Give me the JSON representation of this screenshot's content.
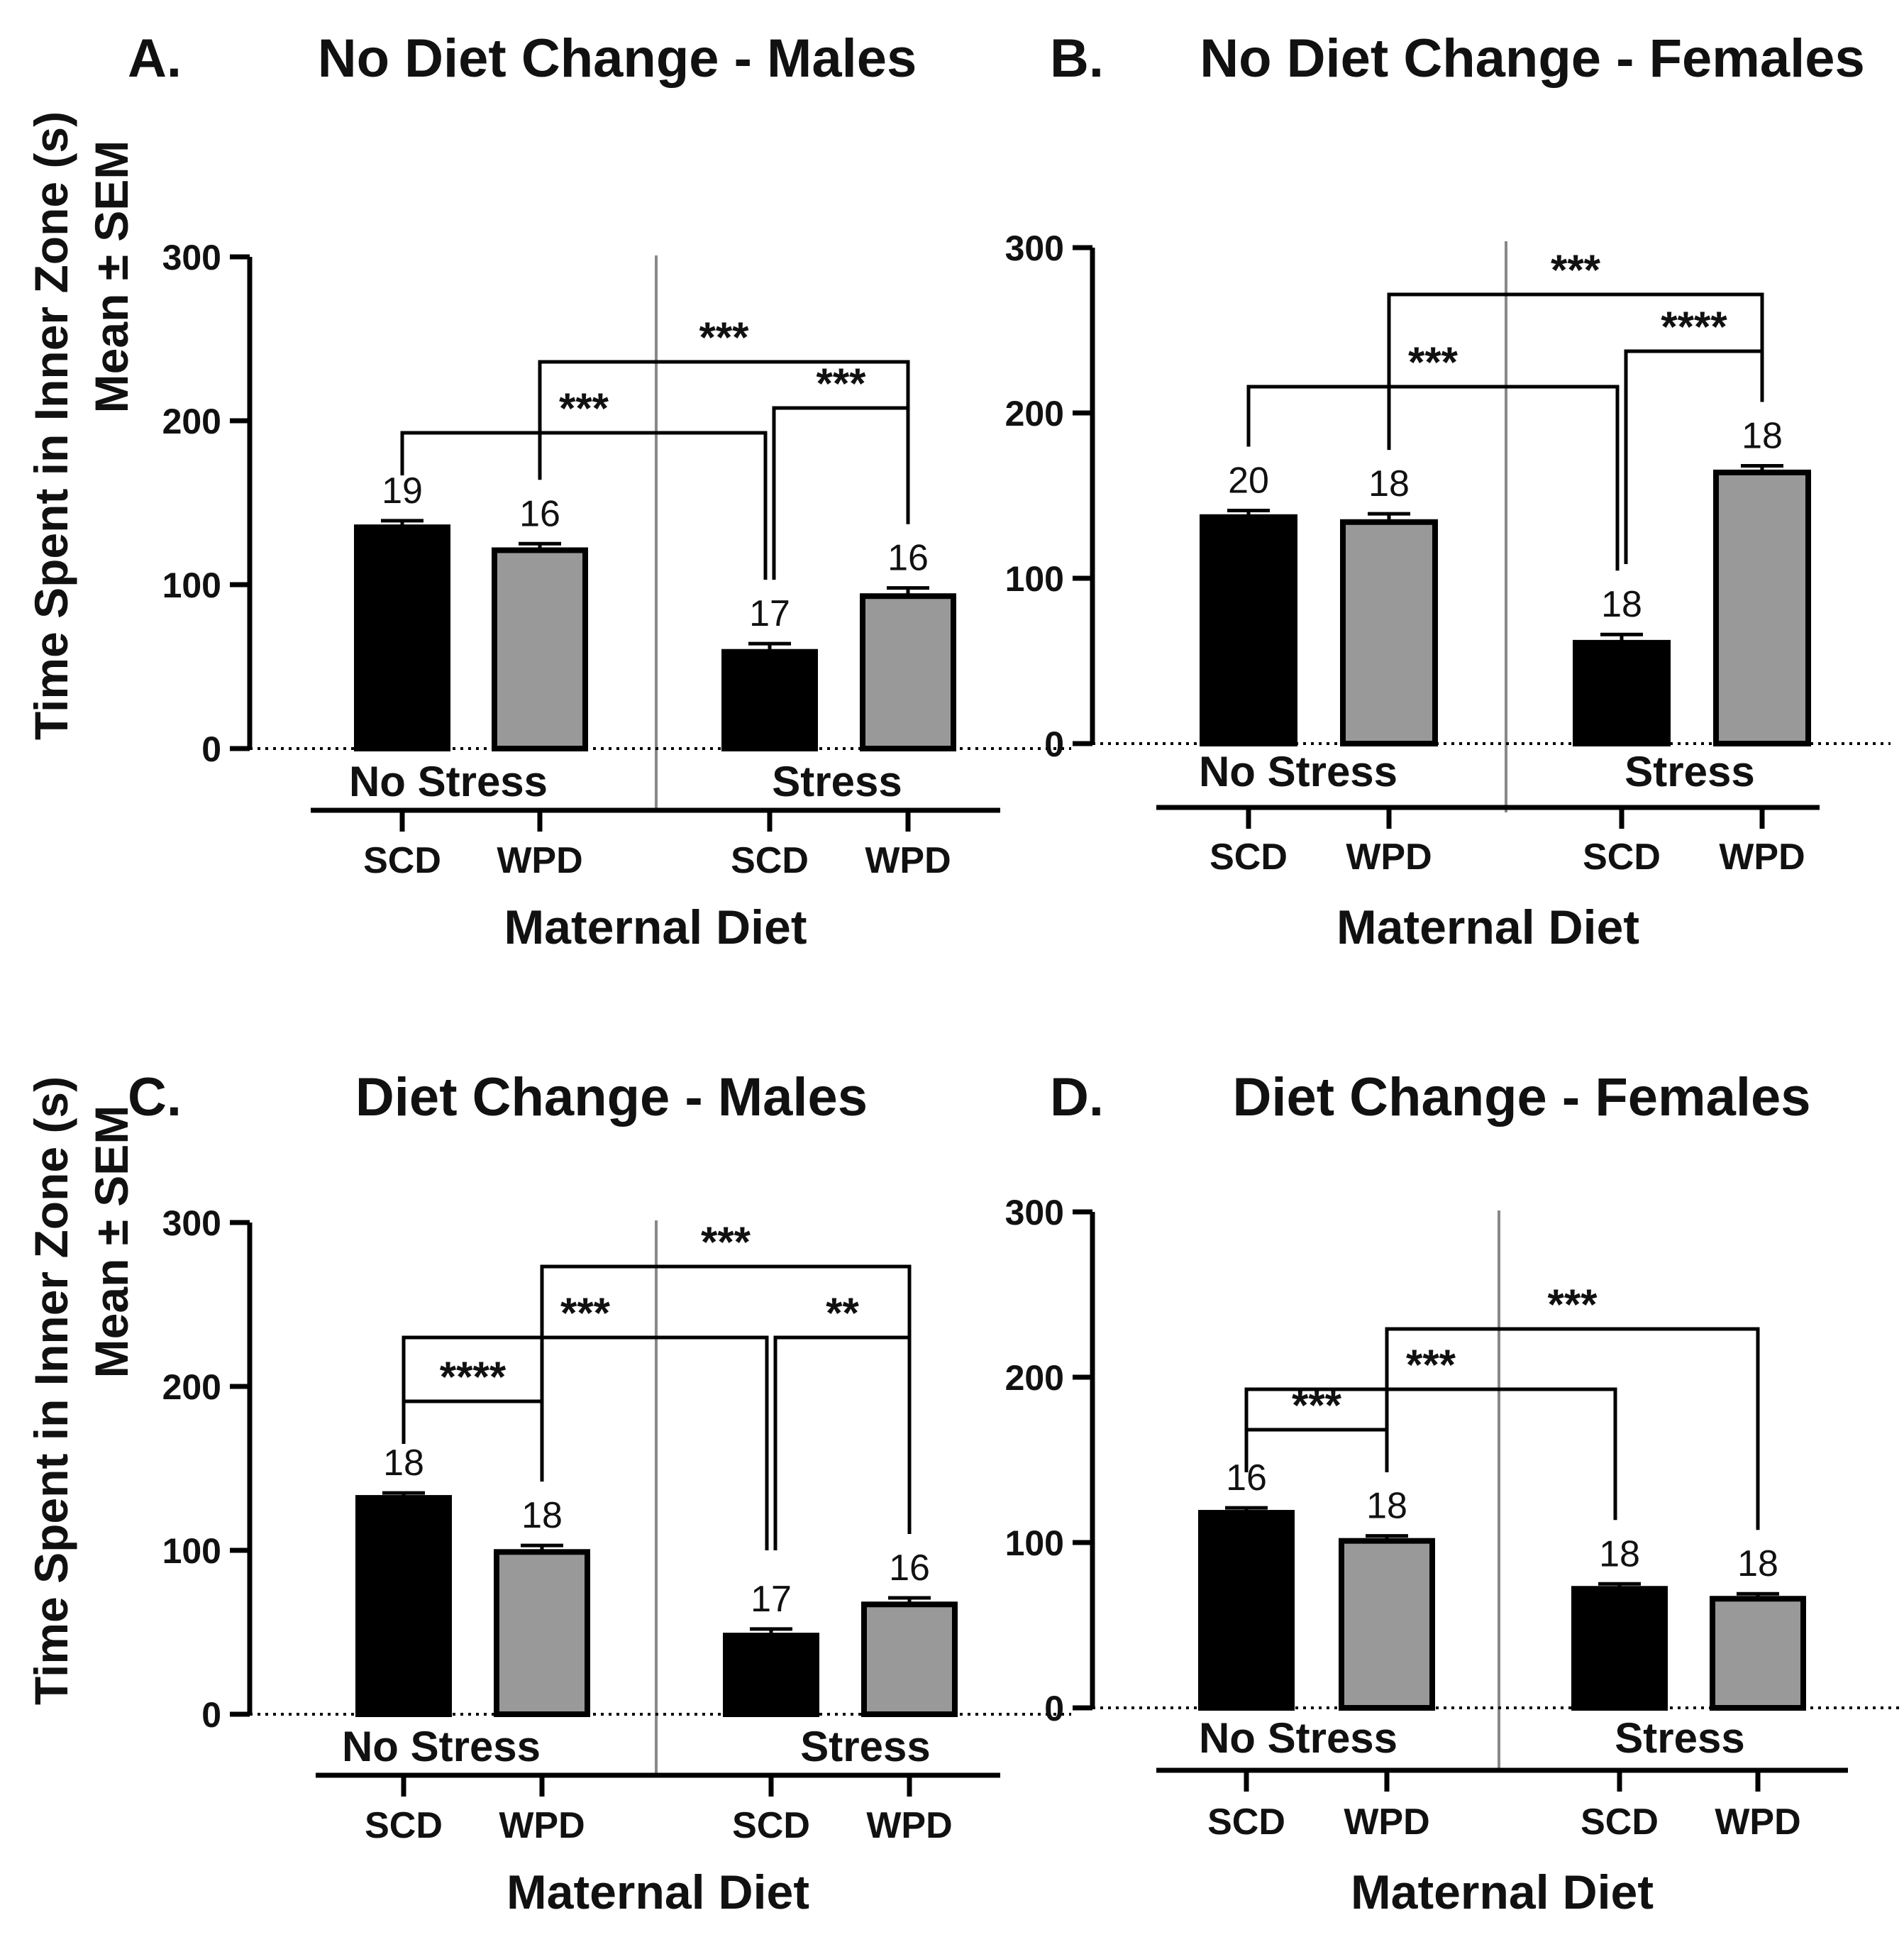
{
  "y_axis_label": {
    "line1": "Time Spent in Inner Zone (s)",
    "line2": "Mean ± SEM"
  },
  "chart_data": [
    {
      "type": "bar",
      "panel": "A.",
      "title": "No Diet Change - Males",
      "ylim": [
        0,
        300
      ],
      "yticks": [
        "0",
        "100",
        "200",
        "300"
      ],
      "xlabel": "Maternal Diet",
      "groups": [
        "No Stress",
        "Stress"
      ],
      "categories": [
        "SCD",
        "WPD",
        "SCD",
        "WPD"
      ],
      "values": [
        135,
        121,
        59,
        93
      ],
      "sem": [
        4,
        4,
        5,
        5
      ],
      "n": [
        "19",
        "16",
        "17",
        "16"
      ],
      "colors": [
        "#000000",
        "#999999",
        "#000000",
        "#999999"
      ],
      "significance": [
        {
          "from": 0,
          "to": 2,
          "label": "***"
        },
        {
          "from": 2,
          "to": 3,
          "label": "***"
        },
        {
          "from": 1,
          "to": 3,
          "label": "***"
        }
      ]
    },
    {
      "type": "bar",
      "panel": "B.",
      "title": "No Diet Change - Females",
      "ylim": [
        0,
        300
      ],
      "yticks": [
        "0",
        "100",
        "200",
        "300"
      ],
      "xlabel": "Maternal Diet",
      "groups": [
        "No Stress",
        "Stress"
      ],
      "categories": [
        "SCD",
        "WPD",
        "SCD",
        "WPD"
      ],
      "values": [
        137,
        134,
        61,
        164
      ],
      "sem": [
        4,
        5,
        5,
        4
      ],
      "n": [
        "20",
        "18",
        "18",
        "18"
      ],
      "colors": [
        "#000000",
        "#999999",
        "#000000",
        "#999999"
      ],
      "significance": [
        {
          "from": 0,
          "to": 2,
          "label": "***"
        },
        {
          "from": 2,
          "to": 3,
          "label": "****"
        },
        {
          "from": 1,
          "to": 3,
          "label": "***"
        }
      ]
    },
    {
      "type": "bar",
      "panel": "C.",
      "title": "Diet Change - Males",
      "ylim": [
        0,
        300
      ],
      "yticks": [
        "0",
        "100",
        "200",
        "300"
      ],
      "xlabel": "Maternal Diet",
      "groups": [
        "No Stress",
        "Stress"
      ],
      "categories": [
        "SCD",
        "WPD",
        "SCD",
        "WPD"
      ],
      "values": [
        132,
        99,
        48,
        67
      ],
      "sem": [
        3,
        4,
        4,
        4
      ],
      "n": [
        "18",
        "18",
        "17",
        "16"
      ],
      "colors": [
        "#000000",
        "#999999",
        "#000000",
        "#999999"
      ],
      "significance": [
        {
          "from": 0,
          "to": 1,
          "label": "****"
        },
        {
          "from": 0,
          "to": 2,
          "label": "***"
        },
        {
          "from": 2,
          "to": 3,
          "label": "**"
        },
        {
          "from": 1,
          "to": 3,
          "label": "***"
        }
      ]
    },
    {
      "type": "bar",
      "panel": "D.",
      "title": "Diet Change - Females",
      "ylim": [
        0,
        300
      ],
      "yticks": [
        "0",
        "100",
        "200",
        "300"
      ],
      "xlabel": "Maternal Diet",
      "groups": [
        "No Stress",
        "Stress"
      ],
      "categories": [
        "SCD",
        "WPD",
        "SCD",
        "WPD"
      ],
      "values": [
        118,
        101,
        72,
        66
      ],
      "sem": [
        3,
        3,
        3,
        3
      ],
      "n": [
        "16",
        "18",
        "18",
        "18"
      ],
      "colors": [
        "#000000",
        "#999999",
        "#000000",
        "#999999"
      ],
      "significance": [
        {
          "from": 0,
          "to": 1,
          "label": "***"
        },
        {
          "from": 0,
          "to": 2,
          "label": "***"
        },
        {
          "from": 1,
          "to": 3,
          "label": "***"
        }
      ]
    }
  ]
}
